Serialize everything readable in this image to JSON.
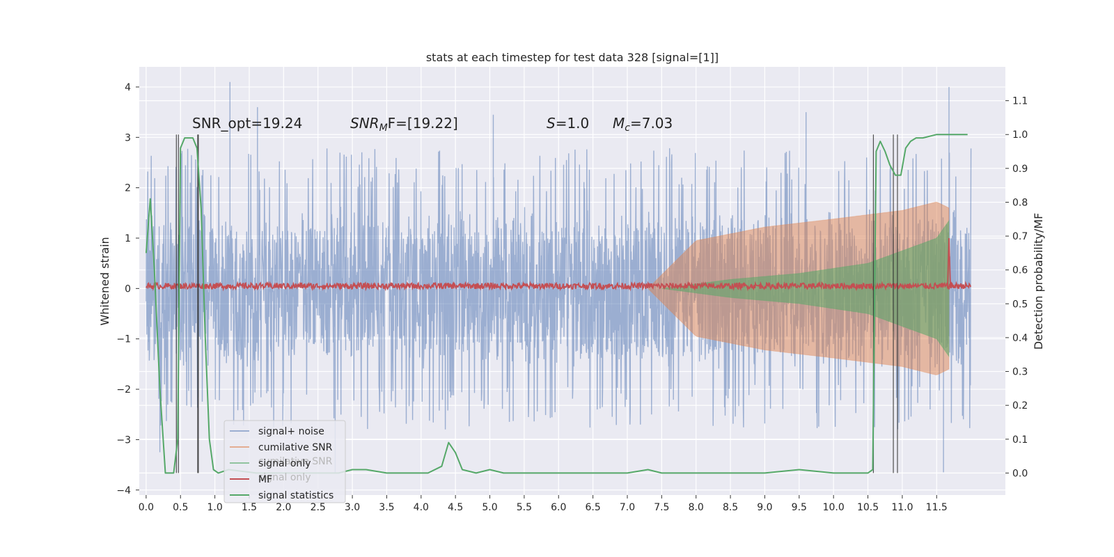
{
  "chart_data": {
    "type": "line",
    "title": "stats at each timestep for test data 328 [signal=[1]]",
    "xlabel": "",
    "ylabel": "Whitened strain",
    "y2label": "Detection probability/MF",
    "xlim": [
      -0.1,
      12.5
    ],
    "ylim": [
      -4.1,
      4.4
    ],
    "y2lim": [
      -0.065,
      1.2
    ],
    "x_ticks": [
      "0.0",
      "0.5",
      "1.0",
      "1.5",
      "2.0",
      "2.5",
      "3.0",
      "3.5",
      "4.0",
      "4.5",
      "5.0",
      "5.5",
      "6.0",
      "6.5",
      "7.0",
      "7.5",
      "8.0",
      "8.5",
      "9.0",
      "9.5",
      "10.0",
      "10.5",
      "11.0",
      "11.5"
    ],
    "y_ticks": [
      "4",
      "3",
      "2",
      "1",
      "0",
      "−1",
      "−2",
      "−3",
      "−4"
    ],
    "y2_ticks": [
      "1.1",
      "1.0",
      "0.9",
      "0.8",
      "0.7",
      "0.6",
      "0.5",
      "0.4",
      "0.3",
      "0.2",
      "0.1",
      "0.0"
    ],
    "grid": true,
    "legend_position": "lower-left",
    "annotations": {
      "snr_opt": "SNR_opt=19.24",
      "snr_mf_prefix": "SNR",
      "snr_mf_sub": "M",
      "snr_mf_rest": "F=[19.22]",
      "s_sym": "S",
      "s_rest": "=1.0",
      "mc_sym": "M",
      "mc_sub": "c",
      "mc_rest": "=7.03"
    },
    "colors": {
      "signal_noise": "#4c72b0",
      "cumulative_snr": "#dd8452",
      "signal_only": "#55a868",
      "mf": "#c44e52",
      "signal_statistics": "#55a868",
      "plot_bg": "#eaeaf2",
      "vlines": "#333333"
    },
    "series": [
      {
        "name": "signal+ noise",
        "envelope_x": [
          0.0,
          11.5,
          12.0
        ],
        "typical_amplitude": 1.5,
        "peak_values": [
          {
            "x": 1.22,
            "y": 4.1
          },
          {
            "x": 1.62,
            "y": 3.6
          },
          {
            "x": 5.05,
            "y": 3.45
          },
          {
            "x": 9.6,
            "y": 3.5
          },
          {
            "x": 11.68,
            "y": 4.0
          },
          {
            "x": 2.75,
            "y": -3.65
          },
          {
            "x": 11.6,
            "y": -3.65
          },
          {
            "x": 10.58,
            "y": -3.6
          },
          {
            "x": 0.2,
            "y": -3.25
          }
        ]
      },
      {
        "name": "cumilative SNR",
        "envelope": [
          [
            7.3,
            0.0
          ],
          [
            8.0,
            0.95
          ],
          [
            9.0,
            1.22
          ],
          [
            10.0,
            1.38
          ],
          [
            11.0,
            1.55
          ],
          [
            11.5,
            1.72
          ],
          [
            11.68,
            1.6
          ]
        ]
      },
      {
        "name": "signal only",
        "envelope": [
          [
            7.5,
            0.0
          ],
          [
            8.5,
            0.18
          ],
          [
            9.5,
            0.3
          ],
          [
            10.5,
            0.5
          ],
          [
            11.0,
            0.75
          ],
          [
            11.5,
            1.0
          ],
          [
            11.68,
            1.35
          ]
        ]
      },
      {
        "name": "MF",
        "baseline": 0.05,
        "spike": {
          "x": 11.68,
          "y": 1.0
        }
      },
      {
        "name": "signal statistics",
        "axis": "right",
        "x": [
          0.0,
          0.06,
          0.12,
          0.2,
          0.28,
          0.34,
          0.4,
          0.46,
          0.5,
          0.56,
          0.62,
          0.68,
          0.74,
          0.8,
          0.86,
          0.92,
          0.98,
          1.05,
          1.2,
          1.6,
          2.0,
          2.5,
          2.8,
          3.0,
          3.2,
          3.5,
          3.8,
          4.1,
          4.3,
          4.4,
          4.5,
          4.6,
          4.8,
          5.0,
          5.2,
          5.5,
          6.0,
          6.5,
          7.0,
          7.3,
          7.5,
          8.0,
          9.0,
          9.5,
          10.0,
          10.5,
          10.57,
          10.62,
          10.68,
          10.75,
          10.82,
          10.9,
          10.98,
          11.05,
          11.12,
          11.2,
          11.3,
          11.5,
          11.6,
          11.7,
          11.8,
          11.95
        ],
        "y": [
          0.65,
          0.81,
          0.6,
          0.25,
          0.0,
          0.0,
          0.0,
          0.1,
          0.96,
          0.99,
          0.99,
          0.99,
          0.96,
          0.78,
          0.4,
          0.1,
          0.01,
          0.0,
          0.01,
          0.0,
          0.0,
          0.0,
          0.0,
          0.01,
          0.01,
          0.0,
          0.0,
          0.0,
          0.02,
          0.09,
          0.06,
          0.01,
          0.0,
          0.01,
          0.0,
          0.0,
          0.0,
          0.0,
          0.0,
          0.01,
          0.0,
          0.0,
          0.0,
          0.01,
          0.0,
          0.0,
          0.01,
          0.95,
          0.98,
          0.95,
          0.91,
          0.88,
          0.88,
          0.96,
          0.98,
          0.99,
          0.99,
          1.0,
          1.0,
          1.0,
          1.0,
          1.0
        ]
      }
    ],
    "vertical_lines_x": [
      0.44,
      0.47,
      0.75,
      0.76,
      10.58,
      10.87,
      10.93
    ],
    "legend": {
      "items": [
        "signal+ noise",
        "cumilative SNR",
        "signal only",
        "MF",
        "signal statistics"
      ],
      "ghost_items": [
        "cumilative SNR",
        "signal only"
      ]
    }
  }
}
